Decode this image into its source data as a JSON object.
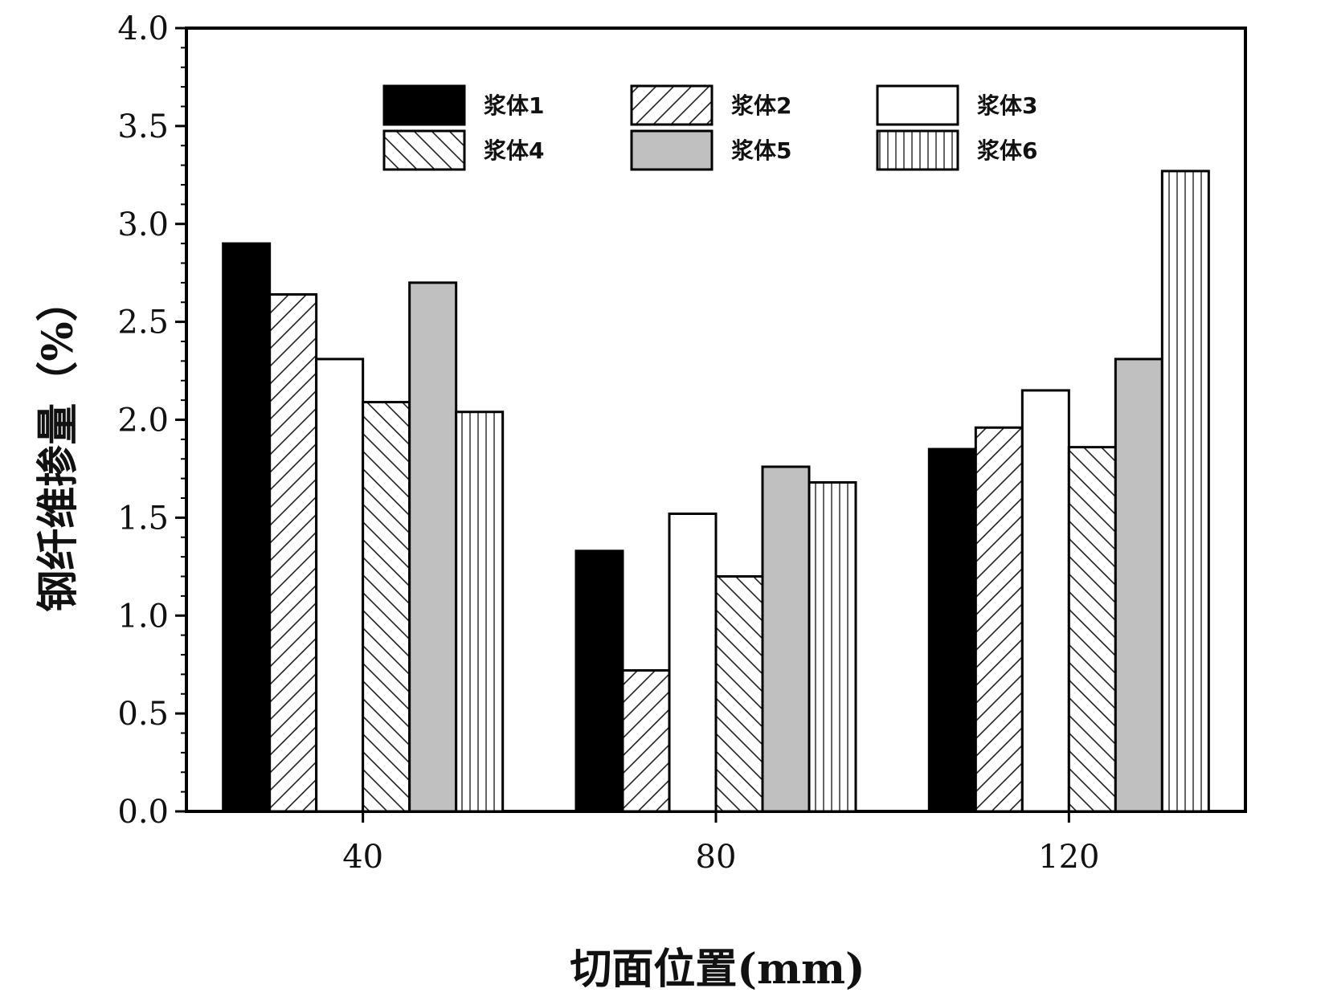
{
  "chart_data": {
    "type": "bar",
    "title": "",
    "xlabel": "切面位置(mm)",
    "ylabel": "钢纤维掺量（%）",
    "categories": [
      "40",
      "80",
      "120"
    ],
    "ylim": [
      0,
      4.0
    ],
    "yticks": [
      "0.0",
      "0.5",
      "1.0",
      "1.5",
      "2.0",
      "2.5",
      "3.0",
      "3.5",
      "4.0"
    ],
    "legend_position": "top",
    "grid": false,
    "series": [
      {
        "name": "浆体1",
        "values": [
          2.9,
          1.33,
          1.85
        ],
        "fill": "solid-black",
        "color": "#000000"
      },
      {
        "name": "浆体2",
        "values": [
          2.64,
          0.72,
          1.96
        ],
        "fill": "diagonal-right",
        "color": "#ffffff"
      },
      {
        "name": "浆体3",
        "values": [
          2.31,
          1.52,
          2.15
        ],
        "fill": "white",
        "color": "#ffffff"
      },
      {
        "name": "浆体4",
        "values": [
          2.09,
          1.2,
          1.86
        ],
        "fill": "diagonal-left",
        "color": "#ffffff"
      },
      {
        "name": "浆体5",
        "values": [
          2.7,
          1.76,
          2.31
        ],
        "fill": "solid-gray",
        "color": "#c0c0c0"
      },
      {
        "name": "浆体6",
        "values": [
          2.04,
          1.68,
          3.27
        ],
        "fill": "vertical",
        "color": "#ffffff"
      }
    ]
  }
}
